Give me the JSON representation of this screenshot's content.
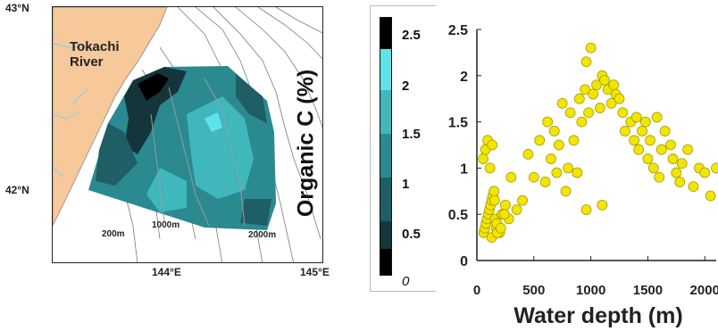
{
  "map": {
    "lat_top": "43°N",
    "lat_bottom": "42°N",
    "lon_left": "144°E",
    "lon_right": "145°E",
    "river_label_line1": "Tokachi",
    "river_label_line2": "River",
    "depth_labels": [
      "200m",
      "1000m",
      "2000m"
    ],
    "colors": {
      "land": "#f6c89a",
      "water": "#ffffff",
      "contour": "#7a7a7a",
      "river": "#8fd3df"
    }
  },
  "colorbar": {
    "title": "Organic C (%)",
    "ticks": [
      "2.5",
      "2",
      "1.5",
      "1",
      "0.5",
      "0"
    ],
    "colors": [
      "#000000",
      "#14363a",
      "#1e5e64",
      "#2a8a90",
      "#3fb7bd",
      "#5fe3ea"
    ]
  },
  "chart_data": {
    "type": "scatter",
    "xlabel": "Water depth (m)",
    "ylabel": "",
    "xlim": [
      0,
      2100
    ],
    "ylim": [
      0,
      2.5
    ],
    "x_ticks": [
      "0",
      "500",
      "1000",
      "1500",
      "2000"
    ],
    "y_ticks": [
      "0",
      "0.5",
      "1",
      "1.5",
      "2",
      "2.5"
    ],
    "point_color": "#f2e600",
    "series": [
      {
        "x": [
          60,
          70,
          80,
          90,
          100,
          110,
          120,
          130,
          140,
          150,
          160,
          170,
          55,
          75,
          95,
          115,
          135,
          155,
          175,
          200,
          220,
          250,
          280,
          300,
          350,
          400,
          450,
          500,
          550,
          600,
          620,
          650,
          680,
          700,
          720,
          750,
          780,
          800,
          820,
          850,
          880,
          900,
          920,
          950,
          960,
          980,
          1000,
          1020,
          1050,
          1080,
          1100,
          1120,
          1150,
          1180,
          1200,
          1220,
          1250,
          1280,
          1300,
          1350,
          1380,
          1400,
          1420,
          1450,
          1480,
          1500,
          1520,
          1550,
          1580,
          1600,
          1620,
          1650,
          1700,
          1720,
          1750,
          1780,
          1800,
          1850,
          1900,
          1950,
          2000,
          2050,
          2100,
          130,
          180,
          210,
          240,
          960,
          1100
        ],
        "y": [
          0.3,
          0.35,
          0.4,
          0.45,
          0.5,
          0.55,
          0.6,
          0.65,
          0.7,
          0.75,
          0.45,
          0.35,
          1.1,
          1.2,
          1.3,
          1.0,
          1.25,
          0.65,
          0.4,
          0.3,
          0.5,
          0.6,
          0.45,
          0.9,
          0.55,
          0.65,
          1.15,
          0.9,
          1.3,
          0.85,
          1.5,
          1.1,
          1.4,
          0.95,
          1.25,
          1.7,
          0.75,
          1.0,
          1.6,
          1.3,
          0.95,
          1.75,
          1.5,
          1.85,
          2.15,
          1.6,
          2.3,
          1.8,
          1.9,
          1.65,
          2.0,
          1.95,
          1.85,
          1.7,
          1.9,
          1.8,
          1.75,
          1.6,
          1.4,
          1.5,
          1.3,
          1.55,
          1.2,
          1.4,
          1.5,
          1.1,
          1.3,
          1.0,
          1.55,
          0.9,
          1.2,
          1.4,
          1.25,
          1.1,
          0.95,
          0.85,
          1.05,
          1.2,
          0.8,
          1.0,
          0.95,
          0.7,
          1.0,
          0.25,
          0.3,
          0.35,
          0.5,
          0.55,
          0.6
        ]
      }
    ]
  }
}
